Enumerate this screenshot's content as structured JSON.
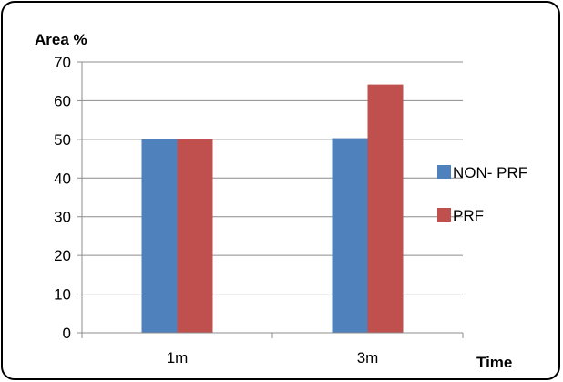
{
  "chart_data": {
    "type": "bar",
    "categories": [
      "1m",
      "3m"
    ],
    "series": [
      {
        "name": "NON- PRF",
        "values": [
          50,
          50.3
        ],
        "color": "#4F81BD"
      },
      {
        "name": "PRF",
        "values": [
          50,
          64.2
        ],
        "color": "#C0504D"
      }
    ],
    "title": "",
    "xlabel": "Time",
    "ylabel": "Area %",
    "ylim": [
      0,
      70
    ],
    "yticks": [
      0,
      10,
      20,
      30,
      40,
      50,
      60,
      70
    ],
    "grid": true,
    "legend": "right"
  }
}
